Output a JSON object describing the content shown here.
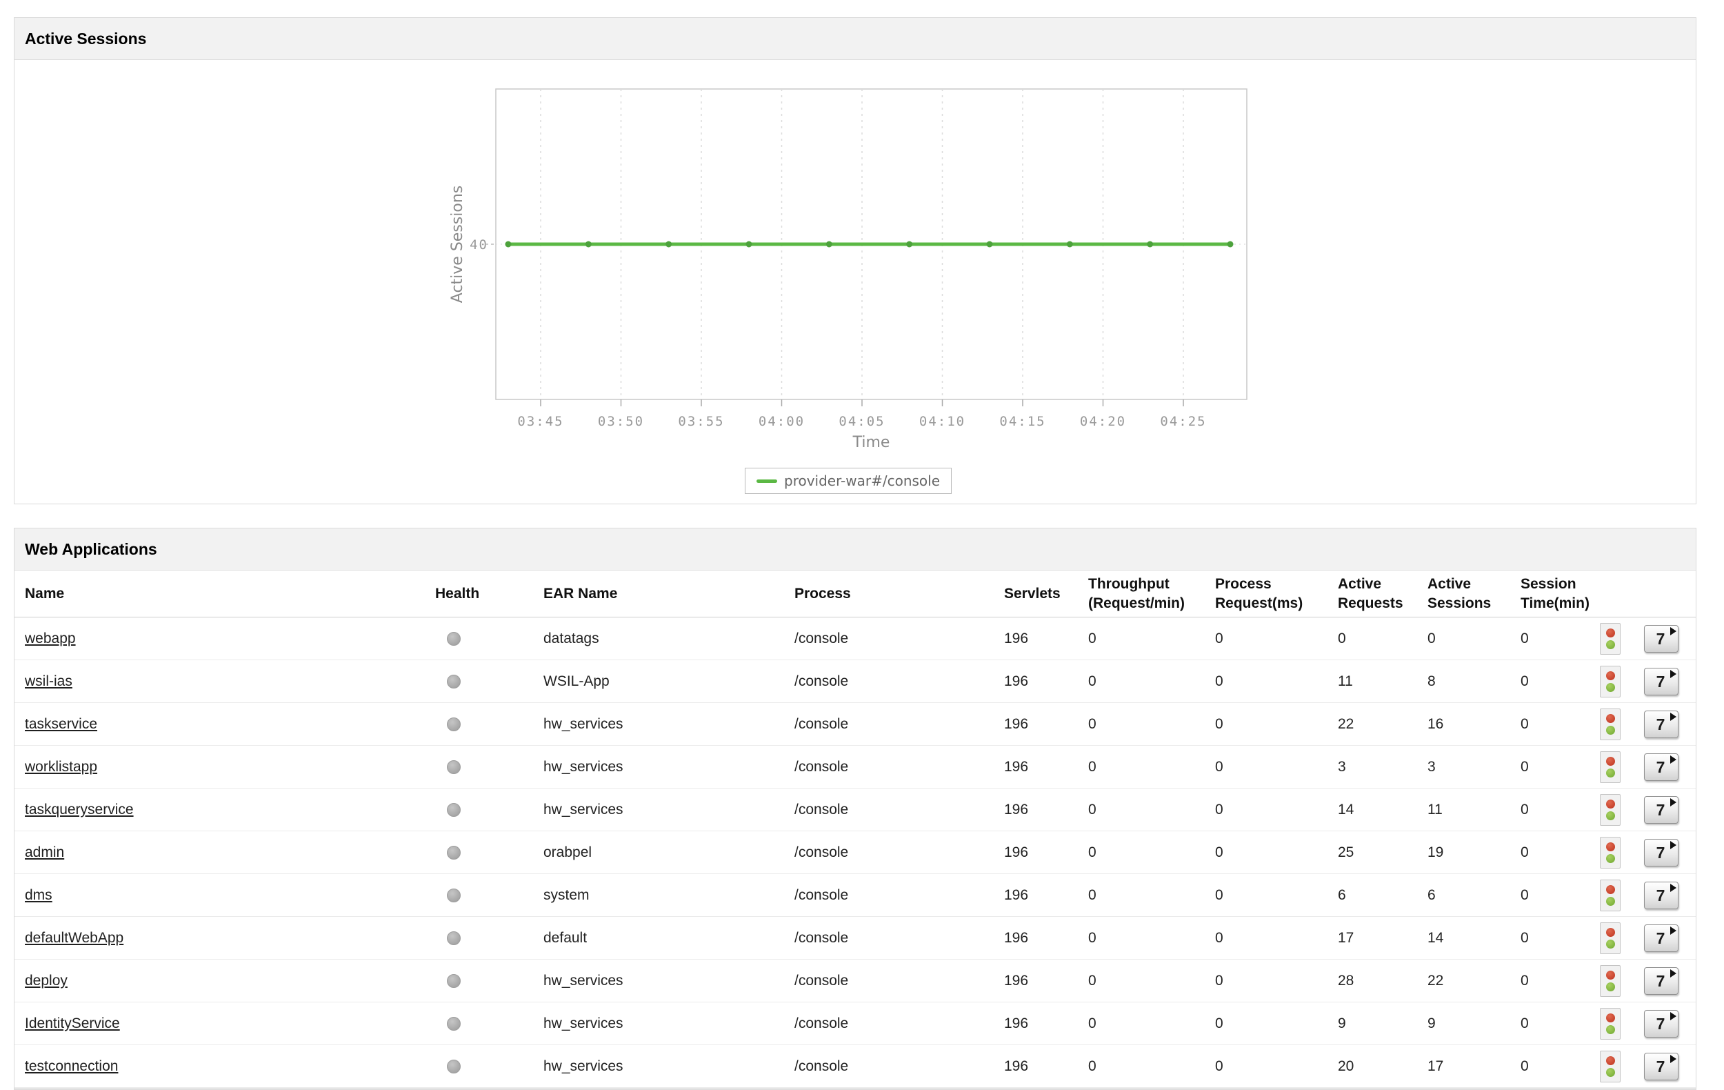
{
  "active_sessions_panel": {
    "title": "Active Sessions"
  },
  "chart_data": {
    "type": "line",
    "title": "",
    "xlabel": "Time",
    "ylabel": "Active Sessions",
    "x_ticks": [
      "03:45",
      "03:50",
      "03:55",
      "04:00",
      "04:05",
      "04:10",
      "04:15",
      "04:20",
      "04:25"
    ],
    "y_ticks": [
      "40"
    ],
    "ylim": [
      0,
      80
    ],
    "grid": "vertical-dashed",
    "legend_position": "bottom-center",
    "series": [
      {
        "name": "provider-war#/console",
        "color": "#5bb844",
        "marker_color": "#4da23c",
        "x": [
          "03:43",
          "03:48",
          "03:53",
          "03:58",
          "04:03",
          "04:08",
          "04:13",
          "04:18",
          "04:23",
          "04:28"
        ],
        "values": [
          40,
          40,
          40,
          40,
          40,
          40,
          40,
          40,
          40,
          40
        ]
      }
    ]
  },
  "web_applications_panel": {
    "title": "Web Applications",
    "columns": [
      {
        "key": "name",
        "label": "Name"
      },
      {
        "key": "health",
        "label": "Health"
      },
      {
        "key": "ear",
        "label": "EAR Name"
      },
      {
        "key": "process",
        "label": "Process"
      },
      {
        "key": "servlets",
        "label": "Servlets"
      },
      {
        "key": "throughput",
        "label": "Throughput (Request/min)"
      },
      {
        "key": "process_request",
        "label": "Process Request(ms)"
      },
      {
        "key": "active_requests",
        "label": "Active Requests"
      },
      {
        "key": "active_sessions",
        "label": "Active Sessions"
      },
      {
        "key": "session_time",
        "label": "Session Time(min)"
      }
    ],
    "icons": {
      "health_dot": "gray-status-dot",
      "traffic_light": "red-green-traffic-light-icon",
      "history_button_label": "7"
    },
    "rows": [
      {
        "name": "webapp",
        "health": "gray",
        "ear": "datatags",
        "process": "/console",
        "servlets": "196",
        "throughput": "0",
        "process_request": "0",
        "active_requests": "0",
        "active_sessions": "0",
        "session_time": "0"
      },
      {
        "name": "wsil-ias",
        "health": "gray",
        "ear": "WSIL-App",
        "process": "/console",
        "servlets": "196",
        "throughput": "0",
        "process_request": "0",
        "active_requests": "11",
        "active_sessions": "8",
        "session_time": "0"
      },
      {
        "name": "taskservice",
        "health": "gray",
        "ear": "hw_services",
        "process": "/console",
        "servlets": "196",
        "throughput": "0",
        "process_request": "0",
        "active_requests": "22",
        "active_sessions": "16",
        "session_time": "0"
      },
      {
        "name": "worklistapp",
        "health": "gray",
        "ear": "hw_services",
        "process": "/console",
        "servlets": "196",
        "throughput": "0",
        "process_request": "0",
        "active_requests": "3",
        "active_sessions": "3",
        "session_time": "0"
      },
      {
        "name": "taskqueryservice",
        "health": "gray",
        "ear": "hw_services",
        "process": "/console",
        "servlets": "196",
        "throughput": "0",
        "process_request": "0",
        "active_requests": "14",
        "active_sessions": "11",
        "session_time": "0"
      },
      {
        "name": "admin",
        "health": "gray",
        "ear": "orabpel",
        "process": "/console",
        "servlets": "196",
        "throughput": "0",
        "process_request": "0",
        "active_requests": "25",
        "active_sessions": "19",
        "session_time": "0"
      },
      {
        "name": "dms",
        "health": "gray",
        "ear": "system",
        "process": "/console",
        "servlets": "196",
        "throughput": "0",
        "process_request": "0",
        "active_requests": "6",
        "active_sessions": "6",
        "session_time": "0"
      },
      {
        "name": "defaultWebApp",
        "health": "gray",
        "ear": "default",
        "process": "/console",
        "servlets": "196",
        "throughput": "0",
        "process_request": "0",
        "active_requests": "17",
        "active_sessions": "14",
        "session_time": "0"
      },
      {
        "name": "deploy",
        "health": "gray",
        "ear": "hw_services",
        "process": "/console",
        "servlets": "196",
        "throughput": "0",
        "process_request": "0",
        "active_requests": "28",
        "active_sessions": "22",
        "session_time": "0"
      },
      {
        "name": "IdentityService",
        "health": "gray",
        "ear": "hw_services",
        "process": "/console",
        "servlets": "196",
        "throughput": "0",
        "process_request": "0",
        "active_requests": "9",
        "active_sessions": "9",
        "session_time": "0"
      },
      {
        "name": "testconnection",
        "health": "gray",
        "ear": "hw_services",
        "process": "/console",
        "servlets": "196",
        "throughput": "0",
        "process_request": "0",
        "active_requests": "20",
        "active_sessions": "17",
        "session_time": "0"
      }
    ]
  },
  "colors": {
    "panel_header_bg": "#f2f2f2",
    "panel_border": "#d9d9d9",
    "series_green": "#5bb844",
    "axis_text": "#999999",
    "gridline": "#dcdcdc"
  }
}
